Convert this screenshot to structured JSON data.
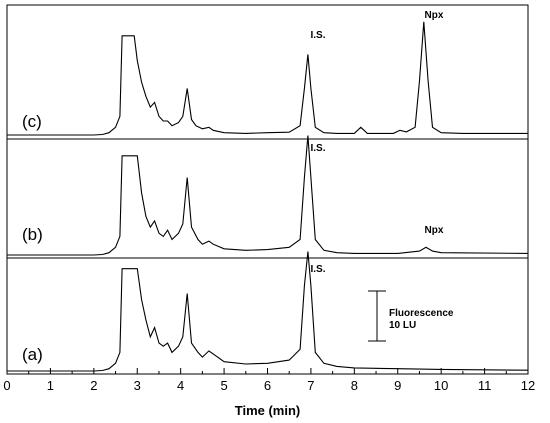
{
  "chart_data": {
    "type": "line",
    "xlabel": "Time (min)",
    "xlim": [
      0,
      12
    ],
    "xticks": [
      0,
      1,
      2,
      3,
      4,
      5,
      6,
      7,
      8,
      9,
      10,
      11,
      12
    ],
    "grid": false,
    "traces": [
      {
        "label": "(c)",
        "points": [
          [
            0,
            0
          ],
          [
            2.0,
            0
          ],
          [
            2.2,
            0.3
          ],
          [
            2.35,
            1.5
          ],
          [
            2.5,
            5
          ],
          [
            2.6,
            12
          ],
          [
            2.65,
            64
          ],
          [
            2.93,
            64
          ],
          [
            3.0,
            48
          ],
          [
            3.1,
            34
          ],
          [
            3.2,
            25
          ],
          [
            3.3,
            18
          ],
          [
            3.4,
            21
          ],
          [
            3.5,
            12
          ],
          [
            3.6,
            9
          ],
          [
            3.7,
            9
          ],
          [
            3.8,
            6
          ],
          [
            3.95,
            8
          ],
          [
            4.05,
            12
          ],
          [
            4.15,
            30
          ],
          [
            4.25,
            10
          ],
          [
            4.35,
            6
          ],
          [
            4.5,
            4
          ],
          [
            4.65,
            5
          ],
          [
            4.75,
            3
          ],
          [
            5.0,
            1.5
          ],
          [
            5.5,
            1
          ],
          [
            6.0,
            1.5
          ],
          [
            6.5,
            1.8
          ],
          [
            6.75,
            6
          ],
          [
            6.85,
            30
          ],
          [
            6.93,
            52
          ],
          [
            7.0,
            30
          ],
          [
            7.1,
            5
          ],
          [
            7.3,
            1.5
          ],
          [
            7.6,
            1
          ],
          [
            8.0,
            1
          ],
          [
            8.15,
            5
          ],
          [
            8.3,
            1
          ],
          [
            8.9,
            1
          ],
          [
            9.05,
            3
          ],
          [
            9.2,
            2
          ],
          [
            9.4,
            5
          ],
          [
            9.5,
            35
          ],
          [
            9.6,
            73
          ],
          [
            9.7,
            35
          ],
          [
            9.8,
            5
          ],
          [
            10.0,
            1.5
          ],
          [
            10.5,
            1
          ],
          [
            12,
            1
          ]
        ]
      },
      {
        "label": "(b)",
        "points": [
          [
            0,
            0
          ],
          [
            2.0,
            0
          ],
          [
            2.2,
            0.3
          ],
          [
            2.35,
            1.5
          ],
          [
            2.5,
            5
          ],
          [
            2.6,
            12
          ],
          [
            2.65,
            64
          ],
          [
            3.0,
            64
          ],
          [
            3.1,
            40
          ],
          [
            3.2,
            25
          ],
          [
            3.3,
            18
          ],
          [
            3.4,
            22
          ],
          [
            3.5,
            14
          ],
          [
            3.6,
            12
          ],
          [
            3.7,
            16
          ],
          [
            3.8,
            10
          ],
          [
            3.95,
            14
          ],
          [
            4.05,
            20
          ],
          [
            4.15,
            50
          ],
          [
            4.25,
            18
          ],
          [
            4.4,
            10
          ],
          [
            4.5,
            7
          ],
          [
            4.65,
            9
          ],
          [
            4.75,
            7
          ],
          [
            5.0,
            4
          ],
          [
            5.5,
            3
          ],
          [
            6.0,
            3.5
          ],
          [
            6.5,
            5
          ],
          [
            6.75,
            10
          ],
          [
            6.85,
            50
          ],
          [
            6.93,
            77
          ],
          [
            7.0,
            50
          ],
          [
            7.1,
            10
          ],
          [
            7.3,
            3
          ],
          [
            7.6,
            1.5
          ],
          [
            8.0,
            1
          ],
          [
            9.0,
            1
          ],
          [
            9.5,
            2.5
          ],
          [
            9.65,
            5
          ],
          [
            9.8,
            2.5
          ],
          [
            10.0,
            1.5
          ],
          [
            12,
            1
          ]
        ]
      },
      {
        "label": "(a)",
        "points": [
          [
            0,
            0
          ],
          [
            2.0,
            0
          ],
          [
            2.2,
            0.3
          ],
          [
            2.35,
            1.5
          ],
          [
            2.5,
            5
          ],
          [
            2.6,
            12
          ],
          [
            2.65,
            66
          ],
          [
            3.0,
            66
          ],
          [
            3.1,
            46
          ],
          [
            3.2,
            33
          ],
          [
            3.3,
            22
          ],
          [
            3.4,
            28
          ],
          [
            3.5,
            18
          ],
          [
            3.6,
            16
          ],
          [
            3.7,
            18
          ],
          [
            3.8,
            12
          ],
          [
            3.95,
            16
          ],
          [
            4.05,
            22
          ],
          [
            4.15,
            50
          ],
          [
            4.25,
            18
          ],
          [
            4.4,
            12
          ],
          [
            4.5,
            9
          ],
          [
            4.65,
            13
          ],
          [
            4.75,
            11
          ],
          [
            5.0,
            6
          ],
          [
            5.5,
            4.5
          ],
          [
            6.0,
            5
          ],
          [
            6.5,
            7
          ],
          [
            6.75,
            14
          ],
          [
            6.85,
            55
          ],
          [
            6.93,
            77
          ],
          [
            7.0,
            55
          ],
          [
            7.1,
            12
          ],
          [
            7.3,
            5
          ],
          [
            7.6,
            3
          ],
          [
            8.0,
            2
          ],
          [
            9.0,
            1.5
          ],
          [
            10.0,
            1
          ],
          [
            12,
            0.5
          ]
        ]
      }
    ],
    "annotations": {
      "is_label": "I.S.",
      "npx_label": "Npx",
      "scale_bar_line1": "Fluorescence",
      "scale_bar_line2": "10 LU"
    },
    "scale_bar_lu": 10
  }
}
